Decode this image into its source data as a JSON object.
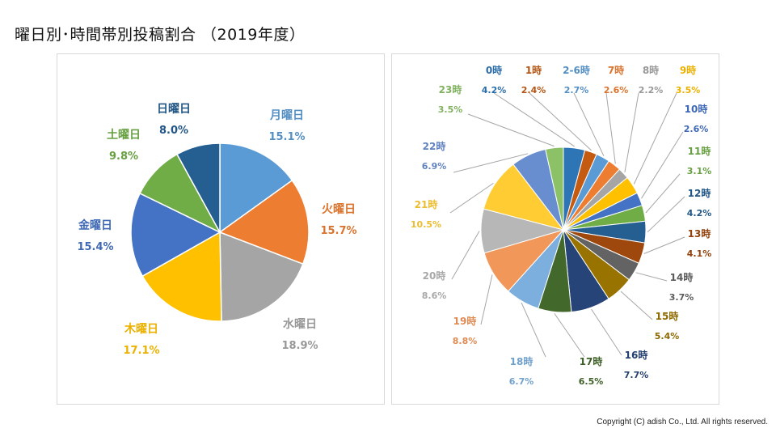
{
  "page": {
    "title": "曜日別･時間帯別投稿割合 （2019年度）",
    "copyright": "Copyright (C) adish Co., Ltd. All rights reserved."
  },
  "chart_data": [
    {
      "type": "pie",
      "categories": [
        "月曜日",
        "火曜日",
        "水曜日",
        "木曜日",
        "金曜日",
        "土曜日",
        "日曜日"
      ],
      "values": [
        15.1,
        15.7,
        18.9,
        17.1,
        15.4,
        9.8,
        8.0
      ],
      "value_labels": [
        "15.1%",
        "15.7%",
        "18.9%",
        "17.1%",
        "15.4%",
        "9.8%",
        "8.0%"
      ],
      "colors": [
        "#5B9BD5",
        "#ED7D31",
        "#A5A5A5",
        "#FFC000",
        "#4472C4",
        "#70AD47",
        "#255E91"
      ],
      "start": "12 o'clock, clockwise"
    },
    {
      "type": "pie",
      "categories": [
        "0時",
        "1時",
        "2-6時",
        "7時",
        "8時",
        "9時",
        "10時",
        "11時",
        "12時",
        "13時",
        "14時",
        "15時",
        "16時",
        "17時",
        "18時",
        "19時",
        "20時",
        "21時",
        "22時",
        "23時"
      ],
      "values": [
        4.2,
        2.4,
        2.7,
        2.6,
        2.2,
        3.5,
        2.6,
        3.1,
        4.2,
        4.1,
        3.7,
        5.4,
        7.7,
        6.5,
        6.7,
        8.8,
        8.6,
        10.5,
        6.9,
        3.5
      ],
      "value_labels": [
        "4.2%",
        "2.4%",
        "2.7%",
        "2.6%",
        "2.2%",
        "3.5%",
        "2.6%",
        "3.1%",
        "4.2%",
        "4.1%",
        "3.7%",
        "5.4%",
        "7.7%",
        "6.5%",
        "6.7%",
        "8.8%",
        "8.6%",
        "10.5%",
        "6.9%",
        "3.5%"
      ],
      "colors": [
        "#2E75B6",
        "#C55A11",
        "#5B9BD5",
        "#ED7D31",
        "#A5A5A5",
        "#FFC000",
        "#4472C4",
        "#70AD47",
        "#255E91",
        "#9E480E",
        "#636363",
        "#997300",
        "#264478",
        "#43682B",
        "#7CAFDD",
        "#F1975A",
        "#B7B7B7",
        "#FFCD33",
        "#698ED0",
        "#8CC168"
      ],
      "start": "12 o'clock, clockwise"
    }
  ]
}
